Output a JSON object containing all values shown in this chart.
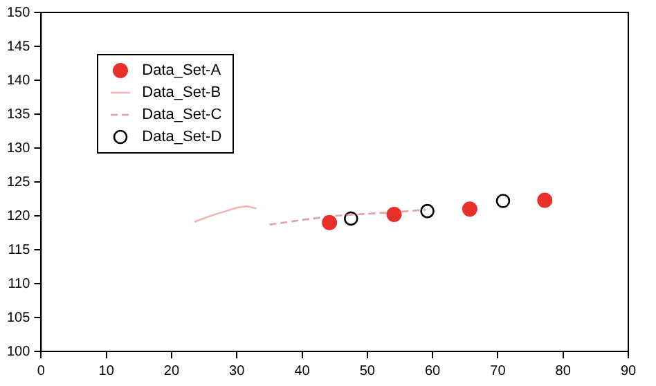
{
  "chart_data": {
    "type": "scatter",
    "xlim": [
      0,
      90
    ],
    "ylim": [
      100,
      150
    ],
    "xticks": [
      0,
      10,
      20,
      30,
      40,
      50,
      60,
      70,
      80,
      90
    ],
    "yticks": [
      100,
      105,
      110,
      115,
      120,
      125,
      130,
      135,
      140,
      145,
      150
    ],
    "legend": "top left",
    "grid": false,
    "series": [
      {
        "name": "Data_Set-A",
        "type": "scatter",
        "marker": "circle",
        "color": "#e8302a",
        "x": [
          44.2,
          54.1,
          65.7,
          77.2
        ],
        "values": [
          119.0,
          120.2,
          121.0,
          122.3
        ]
      },
      {
        "name": "Data_Set-B",
        "type": "line",
        "marker": "none",
        "line_style": "solid",
        "color": "#f0b4b4",
        "x": [
          23.5,
          26,
          28,
          30,
          31.5,
          33
        ],
        "values": [
          119.1,
          120.0,
          120.6,
          121.2,
          121.4,
          121.1
        ]
      },
      {
        "name": "Data_Set-C",
        "type": "line",
        "marker": "none",
        "line_style": "dashed",
        "color": "#e8a0a0",
        "x": [
          35,
          40,
          45,
          50,
          55,
          59
        ],
        "values": [
          118.7,
          119.4,
          120.0,
          120.3,
          120.6,
          120.9
        ]
      },
      {
        "name": "Data_Set-D",
        "type": "scatter",
        "marker": "circle",
        "color": "#000000",
        "x": [
          47.5,
          59.2,
          70.8
        ],
        "values": [
          119.6,
          120.7,
          122.2
        ]
      }
    ]
  }
}
